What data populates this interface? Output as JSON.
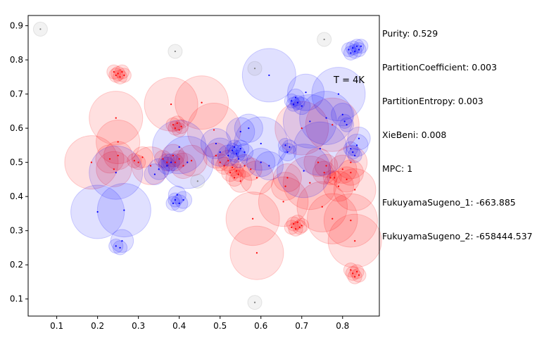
{
  "metrics": [
    "Purity: 0.529",
    "PartitionCoefficient: 0.003",
    "PartitionEntropy: 0.003",
    "XieBeni: 0.008",
    "MPC: 1",
    "FukuyamaSugeno_1: -663.885",
    "FukuyamaSugeno_2: -658444.537"
  ],
  "chart_data": {
    "type": "scatter",
    "annotation": "T = 4K",
    "xlim": [
      0.03,
      0.89
    ],
    "ylim": [
      0.05,
      0.93
    ],
    "xticks": [
      0.1,
      0.2,
      0.3,
      0.4,
      0.5,
      0.6,
      0.7,
      0.8
    ],
    "yticks": [
      0.1,
      0.2,
      0.3,
      0.4,
      0.5,
      0.6,
      0.7,
      0.8,
      0.9
    ],
    "colors": {
      "red": "#ff0000",
      "blue": "#0000ff",
      "gray": "#808080"
    },
    "series": [
      {
        "color": "red",
        "points": [
          [
            0.24,
            0.765
          ],
          [
            0.245,
            0.755
          ],
          [
            0.25,
            0.76
          ],
          [
            0.255,
            0.75
          ],
          [
            0.26,
            0.765
          ],
          [
            0.265,
            0.755
          ],
          [
            0.245,
            0.63
          ],
          [
            0.25,
            0.56
          ],
          [
            0.185,
            0.5
          ],
          [
            0.23,
            0.51
          ],
          [
            0.24,
            0.48
          ],
          [
            0.25,
            0.52
          ],
          [
            0.29,
            0.505
          ],
          [
            0.3,
            0.5
          ],
          [
            0.31,
            0.515
          ],
          [
            0.33,
            0.49
          ],
          [
            0.36,
            0.51
          ],
          [
            0.37,
            0.5
          ],
          [
            0.38,
            0.67
          ],
          [
            0.385,
            0.61
          ],
          [
            0.39,
            0.6
          ],
          [
            0.395,
            0.615
          ],
          [
            0.4,
            0.595
          ],
          [
            0.405,
            0.605
          ],
          [
            0.385,
            0.52
          ],
          [
            0.39,
            0.5
          ],
          [
            0.4,
            0.51
          ],
          [
            0.41,
            0.49
          ],
          [
            0.43,
            0.505
          ],
          [
            0.455,
            0.675
          ],
          [
            0.485,
            0.595
          ],
          [
            0.49,
            0.52
          ],
          [
            0.5,
            0.5
          ],
          [
            0.51,
            0.49
          ],
          [
            0.52,
            0.505
          ],
          [
            0.53,
            0.485
          ],
          [
            0.525,
            0.47
          ],
          [
            0.535,
            0.455
          ],
          [
            0.54,
            0.475
          ],
          [
            0.545,
            0.465
          ],
          [
            0.55,
            0.445
          ],
          [
            0.56,
            0.49
          ],
          [
            0.575,
            0.48
          ],
          [
            0.59,
            0.455
          ],
          [
            0.58,
            0.335
          ],
          [
            0.59,
            0.235
          ],
          [
            0.655,
            0.385
          ],
          [
            0.66,
            0.43
          ],
          [
            0.665,
            0.455
          ],
          [
            0.675,
            0.31
          ],
          [
            0.68,
            0.32
          ],
          [
            0.685,
            0.305
          ],
          [
            0.69,
            0.325
          ],
          [
            0.695,
            0.31
          ],
          [
            0.7,
            0.315
          ],
          [
            0.7,
            0.6
          ],
          [
            0.72,
            0.44
          ],
          [
            0.74,
            0.5
          ],
          [
            0.75,
            0.37
          ],
          [
            0.755,
            0.47
          ],
          [
            0.76,
            0.49
          ],
          [
            0.77,
            0.455
          ],
          [
            0.775,
            0.335
          ],
          [
            0.78,
            0.455
          ],
          [
            0.79,
            0.43
          ],
          [
            0.8,
            0.48
          ],
          [
            0.81,
            0.45
          ],
          [
            0.82,
            0.5
          ],
          [
            0.83,
            0.42
          ],
          [
            0.83,
            0.27
          ],
          [
            0.82,
            0.185
          ],
          [
            0.825,
            0.175
          ],
          [
            0.83,
            0.165
          ],
          [
            0.835,
            0.18
          ],
          [
            0.84,
            0.17
          ],
          [
            0.82,
            0.33
          ],
          [
            0.82,
            0.47
          ],
          [
            0.775,
            0.61
          ]
        ]
      },
      {
        "color": "blue",
        "points": [
          [
            0.2,
            0.355
          ],
          [
            0.245,
            0.47
          ],
          [
            0.245,
            0.255
          ],
          [
            0.255,
            0.25
          ],
          [
            0.265,
            0.36
          ],
          [
            0.26,
            0.27
          ],
          [
            0.34,
            0.465
          ],
          [
            0.35,
            0.48
          ],
          [
            0.37,
            0.49
          ],
          [
            0.38,
            0.5
          ],
          [
            0.385,
            0.38
          ],
          [
            0.39,
            0.39
          ],
          [
            0.395,
            0.405
          ],
          [
            0.4,
            0.38
          ],
          [
            0.41,
            0.39
          ],
          [
            0.4,
            0.545
          ],
          [
            0.42,
            0.5
          ],
          [
            0.49,
            0.555
          ],
          [
            0.5,
            0.53
          ],
          [
            0.52,
            0.52
          ],
          [
            0.53,
            0.535
          ],
          [
            0.535,
            0.545
          ],
          [
            0.54,
            0.525
          ],
          [
            0.545,
            0.51
          ],
          [
            0.55,
            0.54
          ],
          [
            0.56,
            0.53
          ],
          [
            0.57,
            0.6
          ],
          [
            0.55,
            0.59
          ],
          [
            0.6,
            0.555
          ],
          [
            0.6,
            0.5
          ],
          [
            0.62,
            0.49
          ],
          [
            0.62,
            0.755
          ],
          [
            0.66,
            0.55
          ],
          [
            0.665,
            0.53
          ],
          [
            0.67,
            0.545
          ],
          [
            0.675,
            0.68
          ],
          [
            0.68,
            0.67
          ],
          [
            0.685,
            0.69
          ],
          [
            0.69,
            0.675
          ],
          [
            0.7,
            0.665
          ],
          [
            0.71,
            0.705
          ],
          [
            0.705,
            0.475
          ],
          [
            0.72,
            0.62
          ],
          [
            0.745,
            0.54
          ],
          [
            0.76,
            0.63
          ],
          [
            0.79,
            0.7
          ],
          [
            0.8,
            0.64
          ],
          [
            0.805,
            0.62
          ],
          [
            0.81,
            0.61
          ],
          [
            0.815,
            0.83
          ],
          [
            0.82,
            0.82
          ],
          [
            0.825,
            0.835
          ],
          [
            0.83,
            0.825
          ],
          [
            0.835,
            0.84
          ],
          [
            0.84,
            0.83
          ],
          [
            0.845,
            0.84
          ],
          [
            0.82,
            0.54
          ],
          [
            0.825,
            0.53
          ],
          [
            0.83,
            0.52
          ],
          [
            0.835,
            0.55
          ],
          [
            0.84,
            0.57
          ]
        ]
      },
      {
        "color": "gray",
        "points": [
          [
            0.06,
            0.89
          ],
          [
            0.39,
            0.825
          ],
          [
            0.445,
            0.445
          ],
          [
            0.585,
            0.775
          ],
          [
            0.585,
            0.09
          ],
          [
            0.755,
            0.86
          ]
        ]
      }
    ]
  }
}
